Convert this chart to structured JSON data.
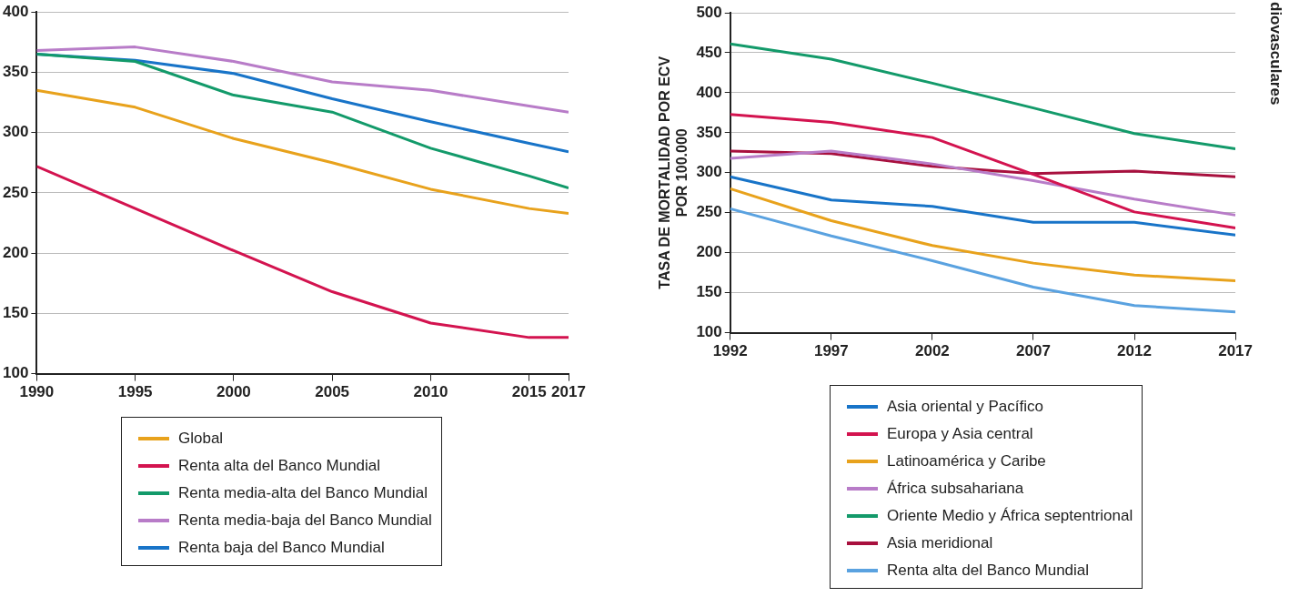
{
  "chart_data": [
    {
      "type": "line",
      "x": [
        1990,
        1995,
        2000,
        2005,
        2010,
        2015,
        2017
      ],
      "xlim": [
        1990,
        2017
      ],
      "xticks": [
        1990,
        1995,
        2000,
        2005,
        2010,
        2015,
        2017
      ],
      "ylim": [
        100,
        400
      ],
      "yticks": [
        100,
        150,
        200,
        250,
        300,
        350,
        400
      ],
      "grid": "y",
      "legend": "bottom",
      "marker": "none",
      "series": [
        {
          "name": "Global",
          "color": "#e8a21c",
          "values": [
            335,
            321,
            295,
            275,
            253,
            237,
            233
          ]
        },
        {
          "name": "Renta alta del Banco Mundial",
          "color": "#d3134f",
          "values": [
            272,
            237,
            202,
            168,
            142,
            130,
            130
          ]
        },
        {
          "name": "Renta media-alta del Banco Mundial",
          "color": "#139a6a",
          "values": [
            365,
            359,
            331,
            317,
            287,
            264,
            254
          ]
        },
        {
          "name": "Renta media-baja del Banco Mundial",
          "color": "#b87cc8",
          "values": [
            368,
            371,
            359,
            342,
            335,
            322,
            317
          ]
        },
        {
          "name": "Renta baja del Banco Mundial",
          "color": "#1874c8",
          "values": [
            365,
            360,
            349,
            328,
            309,
            291,
            284
          ]
        }
      ]
    },
    {
      "type": "line",
      "x": [
        1992,
        1997,
        2002,
        2007,
        2012,
        2017
      ],
      "xlim": [
        1992,
        2017
      ],
      "xticks": [
        1992,
        1997,
        2002,
        2007,
        2012,
        2017
      ],
      "ylim": [
        100,
        500
      ],
      "yticks": [
        100,
        150,
        200,
        250,
        300,
        350,
        400,
        450,
        500
      ],
      "grid": "y",
      "legend": "bottom",
      "marker": "none",
      "ylabel": "TASA DE MORTALIDAD POR ECV\nPOR 100.000",
      "annotations": [
        "diovasculares"
      ],
      "series": [
        {
          "name": "Asia oriental y Pacífico",
          "color": "#1874c8",
          "values": [
            295,
            266,
            258,
            238,
            238,
            222
          ]
        },
        {
          "name": "Europa y Asia central",
          "color": "#d3134f",
          "values": [
            373,
            363,
            344,
            298,
            251,
            231
          ]
        },
        {
          "name": "Latinoamérica y Caribe",
          "color": "#e8a21c",
          "values": [
            280,
            240,
            209,
            187,
            172,
            165
          ]
        },
        {
          "name": "África subsahariana",
          "color": "#b87cc8",
          "values": [
            318,
            327,
            311,
            290,
            267,
            247
          ]
        },
        {
          "name": "Oriente Medio y África septentrional",
          "color": "#139a6a",
          "values": [
            461,
            442,
            412,
            381,
            349,
            330
          ]
        },
        {
          "name": "Asia meridional",
          "color": "#a8103e",
          "values": [
            327,
            324,
            308,
            299,
            302,
            295
          ]
        },
        {
          "name": "Renta alta del Banco Mundial",
          "color": "#5aa2e0",
          "values": [
            255,
            221,
            190,
            157,
            134,
            126
          ]
        }
      ]
    }
  ]
}
